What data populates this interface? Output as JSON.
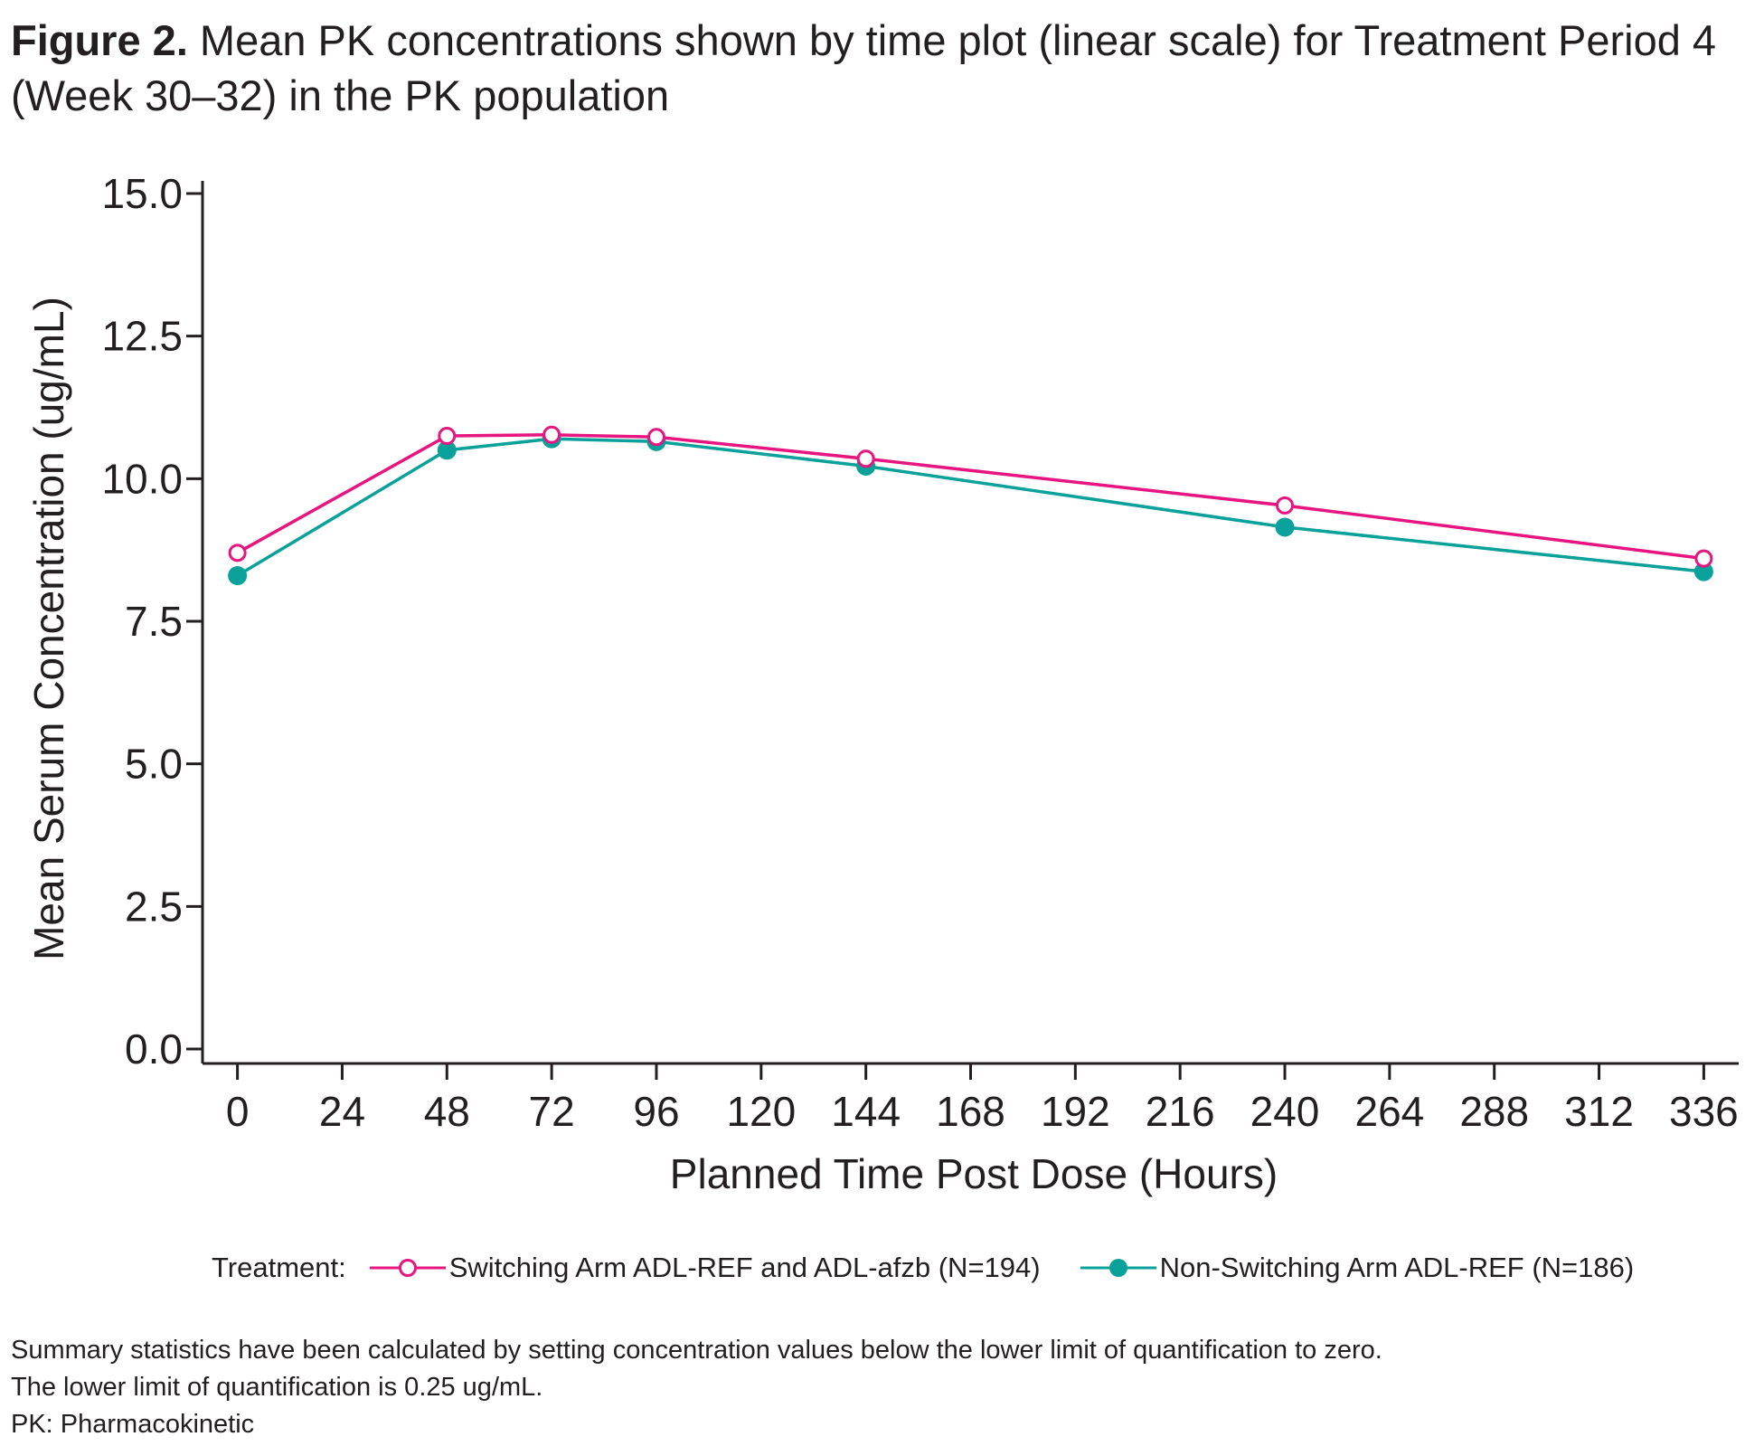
{
  "figure": {
    "label": "Figure 2.",
    "caption": " Mean PK concentrations shown by time plot (linear scale) for Treatment Period 4 (Week 30–32) in the PK population"
  },
  "legend": {
    "title": "Treatment:"
  },
  "footnotes": [
    "Summary statistics have been calculated by setting concentration values below the lower limit of quantification to zero.",
    "The lower limit of quantification is 0.25 ug/mL.",
    "PK: Pharmacokinetic"
  ],
  "colors": {
    "switching": "#e6157f",
    "non_switching": "#0aa19a",
    "axis": "#231f20"
  },
  "chart_data": {
    "type": "line",
    "xlabel": "Planned Time Post Dose (Hours)",
    "ylabel": "Mean Serum Concentration (ug/mL)",
    "xlim": [
      -8,
      344
    ],
    "ylim": [
      0,
      15
    ],
    "x_ticks": [
      0,
      24,
      48,
      72,
      96,
      120,
      144,
      168,
      192,
      216,
      240,
      264,
      288,
      312,
      336
    ],
    "y_ticks": [
      0,
      2.5,
      5,
      7.5,
      10,
      12.5,
      15
    ],
    "y_tick_labels": [
      "0.0",
      "2.5",
      "5.0",
      "7.5",
      "10.0",
      "12.5",
      "15.0"
    ],
    "grid": false,
    "legend_position": "bottom",
    "series": [
      {
        "name": "Switching Arm ADL-REF and ADL-afzb (N=194)",
        "marker": "open-circle",
        "color": "#e6157f",
        "x": [
          0,
          48,
          72,
          96,
          144,
          240,
          336
        ],
        "y": [
          8.7,
          10.75,
          10.77,
          10.73,
          10.35,
          9.53,
          8.6
        ]
      },
      {
        "name": "Non-Switching Arm ADL-REF (N=186)",
        "marker": "filled-circle",
        "color": "#0aa19a",
        "x": [
          0,
          48,
          72,
          96,
          144,
          240,
          336
        ],
        "y": [
          8.3,
          10.5,
          10.7,
          10.65,
          10.22,
          9.15,
          8.37
        ]
      }
    ]
  }
}
